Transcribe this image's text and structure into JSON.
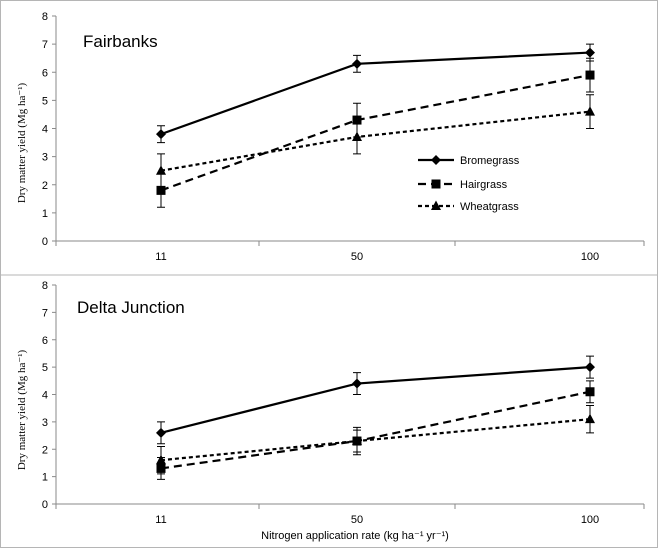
{
  "chart_data": [
    {
      "type": "line",
      "title": "Fairbanks",
      "xlabel": "",
      "ylabel": "Dry matter yield (Mg ha⁻¹)",
      "categories": [
        "11",
        "50",
        "100"
      ],
      "ylim": [
        0,
        8
      ],
      "yticks": [
        0,
        1,
        2,
        3,
        4,
        5,
        6,
        7,
        8
      ],
      "grid": false,
      "legend_position": "right",
      "series": [
        {
          "name": "Bromegrass",
          "marker": "diamond",
          "dash": "solid",
          "values": [
            3.8,
            6.3,
            6.7
          ],
          "error": [
            0.3,
            0.3,
            0.3
          ]
        },
        {
          "name": "Hairgrass",
          "marker": "square",
          "dash": "long-dash",
          "values": [
            1.8,
            4.3,
            5.9
          ],
          "error": [
            0.6,
            0.6,
            0.6
          ]
        },
        {
          "name": "Wheatgrass",
          "marker": "triangle",
          "dash": "short-dash",
          "values": [
            2.5,
            3.7,
            4.6
          ],
          "error": [
            0.6,
            0.6,
            0.6
          ]
        }
      ]
    },
    {
      "type": "line",
      "title": "Delta Junction",
      "xlabel": "Nitrogen application rate (kg ha⁻¹ yr⁻¹)",
      "ylabel": "Dry matter yield (Mg ha⁻¹)",
      "categories": [
        "11",
        "50",
        "100"
      ],
      "ylim": [
        0,
        8
      ],
      "yticks": [
        0,
        1,
        2,
        3,
        4,
        5,
        6,
        7,
        8
      ],
      "grid": false,
      "series": [
        {
          "name": "Bromegrass",
          "marker": "diamond",
          "dash": "solid",
          "values": [
            2.6,
            4.4,
            5.0
          ],
          "error": [
            0.4,
            0.4,
            0.4
          ]
        },
        {
          "name": "Hairgrass",
          "marker": "square",
          "dash": "long-dash",
          "values": [
            1.3,
            2.3,
            4.1
          ],
          "error": [
            0.4,
            0.4,
            0.4
          ]
        },
        {
          "name": "Wheatgrass",
          "marker": "triangle",
          "dash": "short-dash",
          "values": [
            1.6,
            2.3,
            3.1
          ],
          "error": [
            0.5,
            0.5,
            0.5
          ]
        }
      ]
    }
  ]
}
